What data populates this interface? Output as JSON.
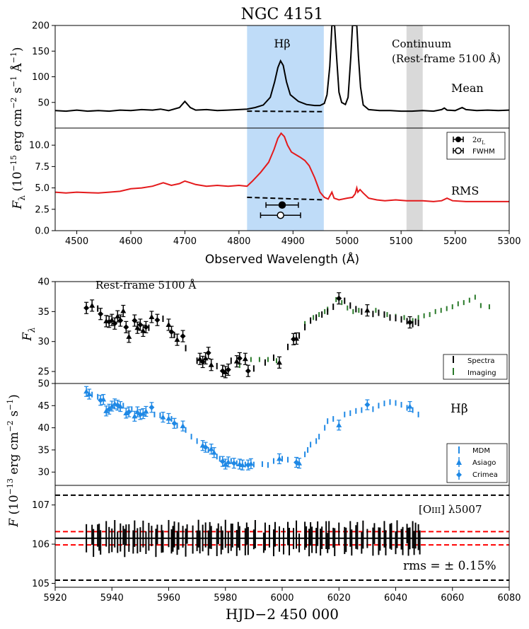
{
  "colors": {
    "black": "#000000",
    "red": "#e41a1c",
    "red_dashed": "#ff0000",
    "blue": "#1e88e5",
    "green": "#2a7a2a",
    "hbeta_band": "#bfdcf8",
    "continuum_band": "#d9d9d9"
  },
  "top": {
    "title": "NGC 4151",
    "xlabel": "Observed Wavelength (Å)",
    "ylabel": "F_λ (10^-15 erg cm^-2 s^-1 Å^-1)",
    "ylabel_parts": [
      "F",
      "λ",
      " (10",
      "−15",
      " erg cm",
      "−2",
      " s",
      "−1",
      " Å",
      "−1",
      ")"
    ],
    "xlim": [
      4460,
      5300
    ],
    "xticks": [
      "4500",
      "4600",
      "4700",
      "4800",
      "4900",
      "5000",
      "5100",
      "5200",
      "5300"
    ],
    "hbeta_band": [
      4815,
      4957
    ],
    "continuum_band": [
      5110,
      5140
    ],
    "mean": {
      "label": "Mean",
      "line_label": "Hβ",
      "ylim": [
        0,
        200
      ],
      "yticks": [
        "50",
        "100",
        "150",
        "200"
      ],
      "continuum_label_1": "Continuum",
      "continuum_label_2": "(Rest-frame 5100 Å)",
      "baseline": {
        "x": [
          4815,
          4957
        ],
        "y": [
          33,
          32
        ]
      },
      "spectrum": [
        [
          4460,
          34
        ],
        [
          4480,
          33
        ],
        [
          4500,
          35
        ],
        [
          4520,
          33
        ],
        [
          4540,
          34
        ],
        [
          4560,
          33
        ],
        [
          4580,
          35
        ],
        [
          4600,
          34
        ],
        [
          4620,
          36
        ],
        [
          4640,
          35
        ],
        [
          4655,
          37
        ],
        [
          4670,
          34
        ],
        [
          4690,
          40
        ],
        [
          4700,
          52
        ],
        [
          4710,
          40
        ],
        [
          4720,
          35
        ],
        [
          4740,
          36
        ],
        [
          4760,
          34
        ],
        [
          4780,
          35
        ],
        [
          4800,
          36
        ],
        [
          4815,
          37
        ],
        [
          4830,
          40
        ],
        [
          4845,
          45
        ],
        [
          4858,
          60
        ],
        [
          4866,
          90
        ],
        [
          4872,
          118
        ],
        [
          4877,
          131
        ],
        [
          4882,
          122
        ],
        [
          4888,
          90
        ],
        [
          4895,
          65
        ],
        [
          4910,
          52
        ],
        [
          4925,
          46
        ],
        [
          4940,
          44
        ],
        [
          4950,
          44
        ],
        [
          4958,
          48
        ],
        [
          4963,
          65
        ],
        [
          4968,
          120
        ],
        [
          4972,
          200
        ],
        [
          4977,
          200
        ],
        [
          4980,
          150
        ],
        [
          4985,
          70
        ],
        [
          4990,
          50
        ],
        [
          4997,
          46
        ],
        [
          5002,
          60
        ],
        [
          5007,
          140
        ],
        [
          5010,
          200
        ],
        [
          5018,
          200
        ],
        [
          5021,
          140
        ],
        [
          5025,
          80
        ],
        [
          5030,
          45
        ],
        [
          5040,
          36
        ],
        [
          5060,
          34
        ],
        [
          5080,
          34
        ],
        [
          5100,
          33
        ],
        [
          5120,
          33
        ],
        [
          5140,
          34
        ],
        [
          5160,
          33
        ],
        [
          5175,
          36
        ],
        [
          5180,
          39
        ],
        [
          5185,
          35
        ],
        [
          5200,
          34
        ],
        [
          5213,
          40
        ],
        [
          5220,
          36
        ],
        [
          5240,
          34
        ],
        [
          5260,
          35
        ],
        [
          5280,
          34
        ],
        [
          5300,
          35
        ]
      ]
    },
    "rms": {
      "label": "RMS",
      "ylim": [
        0,
        12
      ],
      "yticks": [
        "0.0",
        "2.5",
        "5.0",
        "7.5",
        "10.0"
      ],
      "legend": [
        "2σL",
        "FWHM"
      ],
      "legend_sigma_sym": "2σ",
      "legend_sigma_sub": "L",
      "baseline": {
        "x": [
          4815,
          4957
        ],
        "y": [
          3.9,
          3.6
        ]
      },
      "errorbars": [
        {
          "x": 4880,
          "y": 3.0,
          "xerr": 30,
          "filled": true
        },
        {
          "x": 4877,
          "y": 1.8,
          "xerr": 37,
          "filled": false
        }
      ],
      "spectrum": [
        [
          4460,
          4.5
        ],
        [
          4480,
          4.4
        ],
        [
          4500,
          4.5
        ],
        [
          4520,
          4.45
        ],
        [
          4540,
          4.4
        ],
        [
          4560,
          4.5
        ],
        [
          4580,
          4.6
        ],
        [
          4600,
          4.9
        ],
        [
          4620,
          5.0
        ],
        [
          4640,
          5.2
        ],
        [
          4660,
          5.6
        ],
        [
          4675,
          5.3
        ],
        [
          4690,
          5.5
        ],
        [
          4700,
          5.8
        ],
        [
          4710,
          5.6
        ],
        [
          4720,
          5.4
        ],
        [
          4740,
          5.2
        ],
        [
          4760,
          5.3
        ],
        [
          4780,
          5.2
        ],
        [
          4800,
          5.3
        ],
        [
          4815,
          5.2
        ],
        [
          4825,
          5.8
        ],
        [
          4840,
          6.8
        ],
        [
          4855,
          8.0
        ],
        [
          4865,
          9.5
        ],
        [
          4872,
          10.8
        ],
        [
          4878,
          11.4
        ],
        [
          4884,
          11.0
        ],
        [
          4890,
          10.0
        ],
        [
          4897,
          9.2
        ],
        [
          4905,
          8.9
        ],
        [
          4913,
          8.6
        ],
        [
          4922,
          8.2
        ],
        [
          4930,
          7.6
        ],
        [
          4940,
          6.2
        ],
        [
          4950,
          4.5
        ],
        [
          4958,
          3.9
        ],
        [
          4965,
          3.7
        ],
        [
          4972,
          4.5
        ],
        [
          4976,
          3.8
        ],
        [
          4985,
          3.6
        ],
        [
          5000,
          3.8
        ],
        [
          5010,
          3.9
        ],
        [
          5015,
          4.3
        ],
        [
          5018,
          5.0
        ],
        [
          5020,
          4.5
        ],
        [
          5024,
          4.8
        ],
        [
          5030,
          4.4
        ],
        [
          5040,
          3.8
        ],
        [
          5055,
          3.6
        ],
        [
          5070,
          3.5
        ],
        [
          5090,
          3.6
        ],
        [
          5110,
          3.5
        ],
        [
          5140,
          3.5
        ],
        [
          5160,
          3.4
        ],
        [
          5175,
          3.5
        ],
        [
          5185,
          3.8
        ],
        [
          5195,
          3.5
        ],
        [
          5220,
          3.4
        ],
        [
          5250,
          3.4
        ],
        [
          5300,
          3.4
        ]
      ]
    }
  },
  "bottom": {
    "xlabel": "HJD−2 450 000",
    "xlim": [
      5920,
      6080
    ],
    "xticks": [
      "5920",
      "5940",
      "5960",
      "5980",
      "6000",
      "6020",
      "6040",
      "6060",
      "6080"
    ],
    "shared_ylabel_parts": [
      "F",
      " (10",
      "−13",
      " erg cm",
      "−2",
      " s",
      "−1",
      ")"
    ],
    "continuum": {
      "title": "Rest-frame 5100 Å",
      "ylabel": "F_λ",
      "ylim": [
        23,
        40
      ],
      "yticks": [
        "25",
        "30",
        "35",
        "40"
      ],
      "legend": [
        "Spectra",
        "Imaging"
      ],
      "spectra_marked": [
        [
          5931,
          35.6
        ],
        [
          5933,
          36
        ],
        [
          5936,
          34.6
        ],
        [
          5938,
          33.4
        ],
        [
          5939,
          33.3
        ],
        [
          5940,
          33.6
        ],
        [
          5941,
          33.0
        ],
        [
          5942,
          34.2
        ],
        [
          5943,
          33.5
        ],
        [
          5944,
          35.1
        ],
        [
          5945,
          32.4
        ],
        [
          5946,
          30.8
        ],
        [
          5948,
          33.5
        ],
        [
          5949,
          32.3
        ],
        [
          5950,
          32.8
        ],
        [
          5951,
          31.8
        ],
        [
          5952,
          32.4
        ],
        [
          5954,
          34.1
        ],
        [
          5956,
          33.6
        ],
        [
          5960,
          32.8
        ],
        [
          5961,
          31.6
        ],
        [
          5963,
          30.3
        ],
        [
          5965,
          30.9
        ],
        [
          5971,
          27.1
        ],
        [
          5972,
          26.6
        ],
        [
          5973,
          27.2
        ],
        [
          5974,
          28.1
        ],
        [
          5975,
          26.1
        ],
        [
          5979,
          25.1
        ],
        [
          5980,
          24.9
        ],
        [
          5981,
          25.3
        ],
        [
          5984,
          26.7
        ],
        [
          5985,
          27.2
        ],
        [
          5987,
          27.1
        ],
        [
          5988,
          25.1
        ],
        [
          5999,
          26.5
        ],
        [
          6004,
          30.4
        ],
        [
          6005,
          30.5
        ],
        [
          6020,
          37.2
        ],
        [
          6030,
          35.2
        ],
        [
          6045,
          33.2
        ]
      ],
      "spectra_plain": [
        [
          5935,
          35.5
        ],
        [
          5953,
          32.3
        ],
        [
          5958,
          33.8
        ],
        [
          5962,
          31.1
        ],
        [
          5966,
          28.9
        ],
        [
          5970,
          26.8
        ],
        [
          5977,
          25.9
        ],
        [
          5982,
          26.8
        ],
        [
          5990,
          25.5
        ],
        [
          5994,
          26.5
        ],
        [
          5997,
          27.3
        ],
        [
          6002,
          29.1
        ],
        [
          6006,
          31.0
        ],
        [
          6008,
          32.4
        ],
        [
          6010,
          33.5
        ],
        [
          6012,
          34.0
        ],
        [
          6014,
          34.5
        ],
        [
          6016,
          35.0
        ],
        [
          6018,
          35.8
        ],
        [
          6022,
          36.8
        ],
        [
          6024,
          36.0
        ],
        [
          6026,
          35.4
        ],
        [
          6028,
          35.0
        ],
        [
          6032,
          34.6
        ],
        [
          6034,
          34.8
        ],
        [
          6036,
          34.5
        ],
        [
          6038,
          34.0
        ],
        [
          6040,
          33.9
        ],
        [
          6042,
          33.7
        ],
        [
          6044,
          33.4
        ],
        [
          6046,
          32.9
        ],
        [
          6047,
          33.3
        ],
        [
          6048,
          33.1
        ]
      ],
      "imaging": [
        [
          5985,
          26.0
        ],
        [
          5989,
          27.0
        ],
        [
          5992,
          27.0
        ],
        [
          5995,
          27.0
        ],
        [
          5998,
          26.8
        ],
        [
          6004,
          30.5
        ],
        [
          6008,
          33.0
        ],
        [
          6011,
          34.0
        ],
        [
          6013,
          34.5
        ],
        [
          6015,
          35.0
        ],
        [
          6016,
          35.4
        ],
        [
          6019,
          37.0
        ],
        [
          6021,
          36.5
        ],
        [
          6023,
          35.6
        ],
        [
          6025,
          35.0
        ],
        [
          6027,
          35.2
        ],
        [
          6033,
          35.2
        ],
        [
          6037,
          34.5
        ],
        [
          6040,
          34.2
        ],
        [
          6043,
          34.0
        ],
        [
          6046,
          33.5
        ],
        [
          6048,
          34.0
        ],
        [
          6050,
          34.3
        ],
        [
          6052,
          34.5
        ],
        [
          6054,
          35.0
        ],
        [
          6056,
          35.2
        ],
        [
          6058,
          35.5
        ],
        [
          6060,
          35.8
        ],
        [
          6062,
          36.3
        ],
        [
          6064,
          36.5
        ],
        [
          6066,
          36.9
        ],
        [
          6068,
          37.4
        ],
        [
          6070,
          36.0
        ],
        [
          6073,
          35.8
        ]
      ]
    },
    "hbeta": {
      "label": "Hβ",
      "ylim": [
        27,
        50
      ],
      "yticks": [
        "30",
        "35",
        "40",
        "45",
        "50"
      ],
      "legend": [
        "MDM",
        "Asiago",
        "Crimea"
      ],
      "marked": [
        [
          5931,
          48.2
        ],
        [
          5932,
          47.6
        ],
        [
          5936,
          46.2
        ],
        [
          5937,
          46.4
        ],
        [
          5938,
          43.8
        ],
        [
          5939,
          44.2
        ],
        [
          5940,
          44.9
        ],
        [
          5941,
          45.4
        ],
        [
          5942,
          45.1
        ],
        [
          5943,
          44.8
        ],
        [
          5945,
          43.3
        ],
        [
          5946,
          43.6
        ],
        [
          5948,
          42.6
        ],
        [
          5949,
          43.6
        ],
        [
          5950,
          43.0
        ],
        [
          5951,
          43.2
        ],
        [
          5952,
          43.7
        ],
        [
          5954,
          44.6
        ],
        [
          5958,
          42.4
        ],
        [
          5960,
          42.1
        ],
        [
          5962,
          41.0
        ],
        [
          5965,
          40.4
        ],
        [
          5972,
          36.0
        ],
        [
          5973,
          35.6
        ],
        [
          5975,
          35.2
        ],
        [
          5976,
          34.4
        ],
        [
          5979,
          32.4
        ],
        [
          5980,
          31.8
        ],
        [
          5981,
          32.3
        ],
        [
          5983,
          32.0
        ],
        [
          5985,
          31.8
        ],
        [
          5986,
          31.6
        ],
        [
          5988,
          31.6
        ],
        [
          5989,
          31.9
        ],
        [
          5999,
          33.0
        ],
        [
          6005,
          32.2
        ],
        [
          6006,
          32.0
        ],
        [
          6020,
          40.6
        ],
        [
          6030,
          45.2
        ],
        [
          6045,
          44.8
        ]
      ],
      "mdm": [
        [
          5933,
          47.5
        ],
        [
          5935,
          47.0
        ],
        [
          5944,
          45.0
        ],
        [
          5947,
          44.2
        ],
        [
          5955,
          43.0
        ],
        [
          5957,
          42.8
        ],
        [
          5961,
          42.0
        ],
        [
          5963,
          40.5
        ],
        [
          5966,
          39.5
        ],
        [
          5968,
          38.0
        ],
        [
          5970,
          37.0
        ],
        [
          5974,
          35.0
        ],
        [
          5977,
          33.5
        ],
        [
          5978,
          33.0
        ],
        [
          5982,
          32.5
        ],
        [
          5984,
          32.0
        ],
        [
          5987,
          31.7
        ],
        [
          5990,
          31.7
        ],
        [
          5993,
          31.8
        ],
        [
          5995,
          31.6
        ],
        [
          5997,
          32.5
        ],
        [
          6000,
          33.0
        ],
        [
          6002,
          32.8
        ],
        [
          6008,
          34.0
        ],
        [
          6009,
          35.0
        ],
        [
          6010,
          36.2
        ],
        [
          6012,
          37.0
        ],
        [
          6013,
          38.0
        ],
        [
          6015,
          40.0
        ],
        [
          6016,
          41.5
        ],
        [
          6018,
          42.0
        ],
        [
          6022,
          43.0
        ],
        [
          6024,
          43.3
        ],
        [
          6026,
          43.8
        ],
        [
          6028,
          44.0
        ],
        [
          6032,
          44.2
        ],
        [
          6034,
          45.0
        ],
        [
          6036,
          45.5
        ],
        [
          6038,
          45.8
        ],
        [
          6040,
          45.6
        ],
        [
          6042,
          45.2
        ],
        [
          6044,
          44.5
        ],
        [
          6046,
          44.0
        ],
        [
          6048,
          43.0
        ]
      ]
    },
    "oiii": {
      "label": "[OIII] λ5007",
      "label_main": "[O",
      "label_small": "III",
      "label_tail": "] λ5007",
      "rms_label": "rms = ± 0.15%",
      "ylim": [
        104.9,
        107.5
      ],
      "yticks": [
        "105",
        "106",
        "107"
      ],
      "mean": 106.15,
      "red_dashed": [
        106.32,
        105.98
      ],
      "black_dashed": [
        107.25,
        105.08
      ],
      "halfspread": 0.3
    }
  }
}
